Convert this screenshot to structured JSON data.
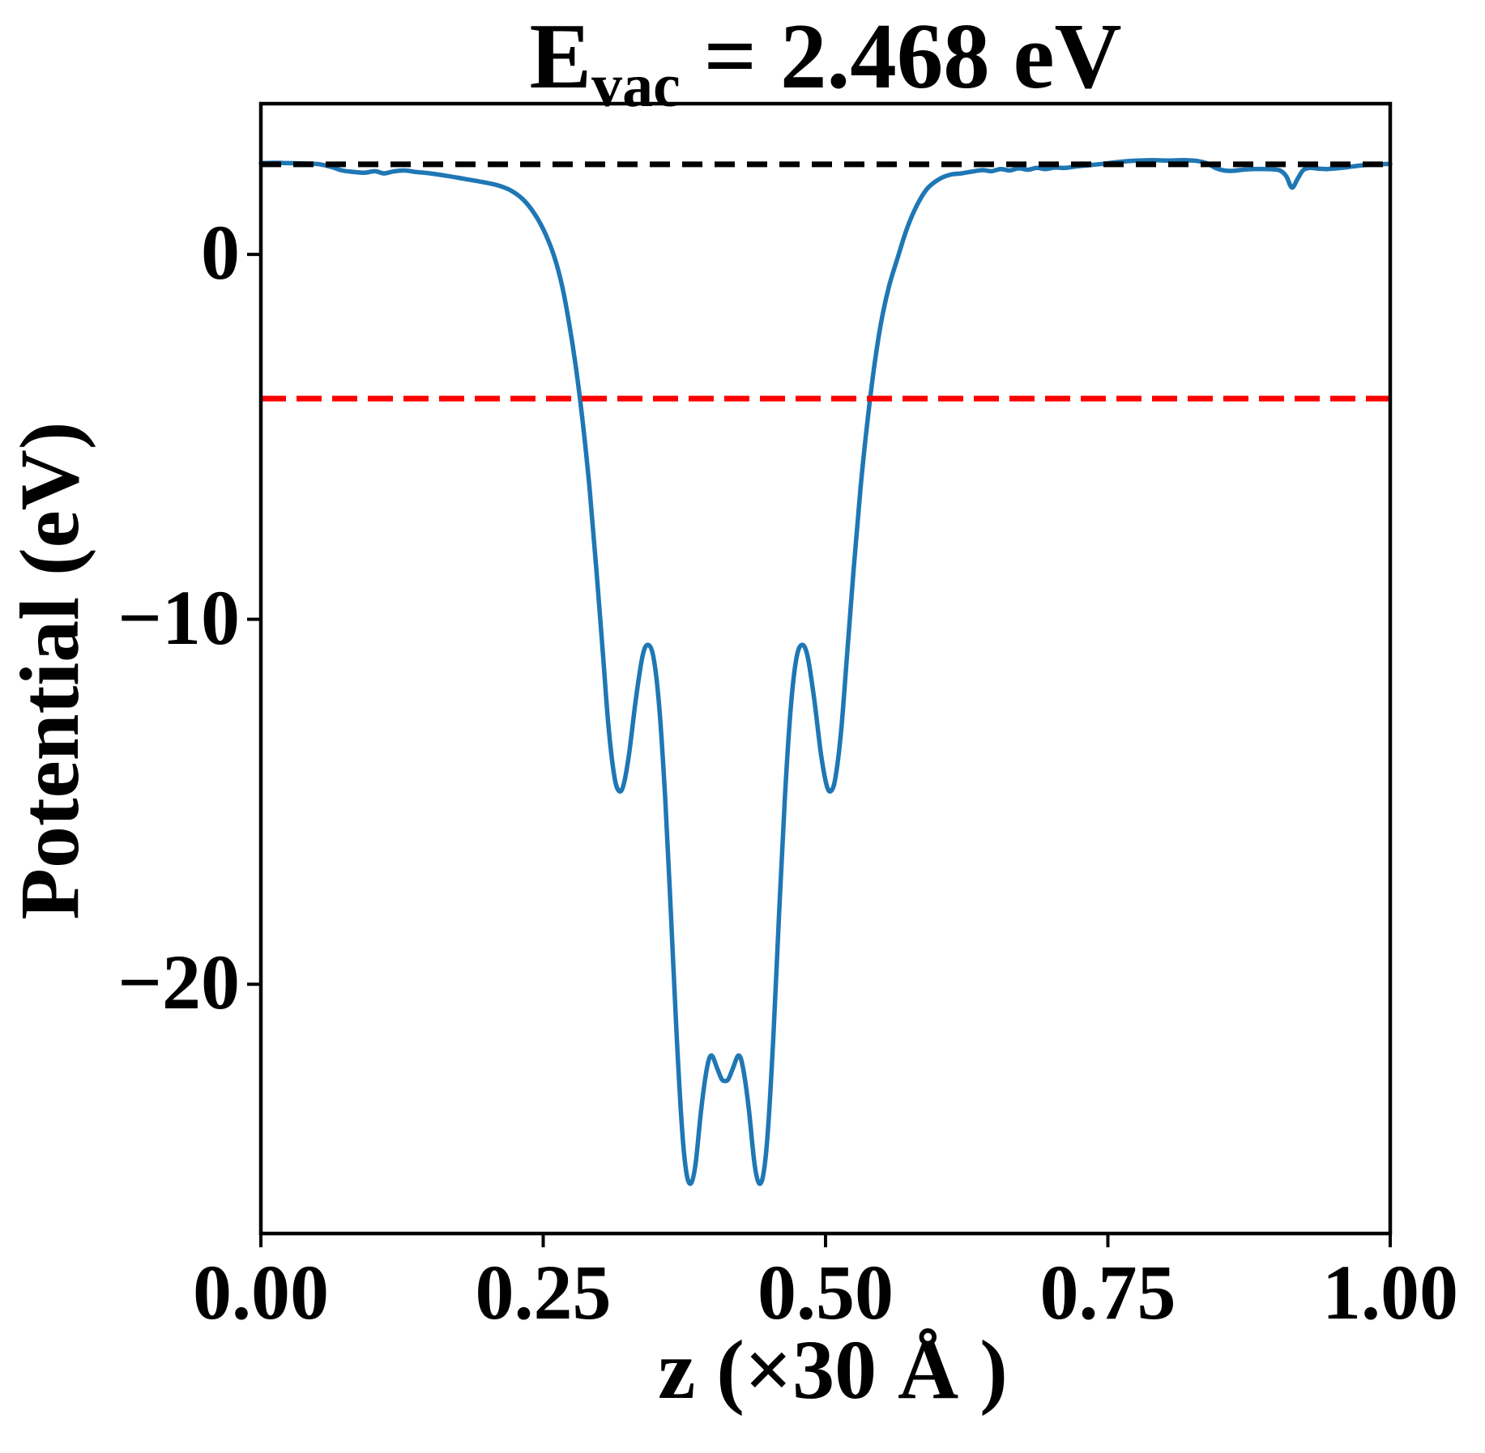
{
  "title": {
    "base": "E",
    "subscript": "vac",
    "rest": " = 2.468 eV",
    "full": "E_vac = 2.468 eV"
  },
  "colors": {
    "curve": "#1f77b4",
    "vacuum_line": "#000000",
    "fermi_line": "#ff0000",
    "axes": "#000000",
    "background": "#ffffff"
  },
  "chart_data": {
    "type": "line",
    "title": "E_vac = 2.468 eV",
    "xlabel": "z (×30 Å )",
    "ylabel": "Potential (eV)",
    "xlim": [
      0,
      1
    ],
    "ylim": [
      -26.83,
      4.13
    ],
    "grid": false,
    "legend": "none",
    "x_ticks": {
      "values": [
        0.0,
        0.25,
        0.5,
        0.75,
        1.0
      ],
      "labels": [
        "0.00",
        "0.25",
        "0.50",
        "0.75",
        "1.00"
      ]
    },
    "y_ticks": {
      "values": [
        0,
        -10,
        -20
      ],
      "labels": [
        "0",
        "−10",
        "−20"
      ]
    },
    "series": [
      {
        "name": "planar-averaged-potential",
        "kind": "line",
        "color": "#1f77b4",
        "style": "solid",
        "linewidth": 5.5,
        "points": [
          [
            0.0,
            2.5
          ],
          [
            0.012,
            2.51
          ],
          [
            0.025,
            2.5
          ],
          [
            0.04,
            2.49
          ],
          [
            0.052,
            2.47
          ],
          [
            0.062,
            2.4
          ],
          [
            0.072,
            2.3
          ],
          [
            0.082,
            2.26
          ],
          [
            0.092,
            2.24
          ],
          [
            0.101,
            2.28
          ],
          [
            0.109,
            2.22
          ],
          [
            0.117,
            2.27
          ],
          [
            0.127,
            2.3
          ],
          [
            0.137,
            2.26
          ],
          [
            0.15,
            2.22
          ],
          [
            0.165,
            2.15
          ],
          [
            0.18,
            2.07
          ],
          [
            0.195,
            1.99
          ],
          [
            0.21,
            1.89
          ],
          [
            0.222,
            1.74
          ],
          [
            0.233,
            1.48
          ],
          [
            0.243,
            1.08
          ],
          [
            0.252,
            0.56
          ],
          [
            0.26,
            -0.08
          ],
          [
            0.267,
            -0.9
          ],
          [
            0.273,
            -1.9
          ],
          [
            0.279,
            -3.1
          ],
          [
            0.285,
            -4.6
          ],
          [
            0.291,
            -6.4
          ],
          [
            0.297,
            -8.6
          ],
          [
            0.303,
            -11.0
          ],
          [
            0.308,
            -13.0
          ],
          [
            0.313,
            -14.3
          ],
          [
            0.317,
            -14.7
          ],
          [
            0.321,
            -14.55
          ],
          [
            0.326,
            -13.7
          ],
          [
            0.332,
            -12.2
          ],
          [
            0.338,
            -11.0
          ],
          [
            0.343,
            -10.7
          ],
          [
            0.348,
            -11.1
          ],
          [
            0.353,
            -12.5
          ],
          [
            0.358,
            -14.9
          ],
          [
            0.363,
            -18.0
          ],
          [
            0.368,
            -21.3
          ],
          [
            0.373,
            -24.0
          ],
          [
            0.377,
            -25.2
          ],
          [
            0.381,
            -25.45
          ],
          [
            0.385,
            -24.9
          ],
          [
            0.39,
            -23.4
          ],
          [
            0.395,
            -22.3
          ],
          [
            0.399,
            -21.95
          ],
          [
            0.404,
            -22.3
          ],
          [
            0.408,
            -22.6
          ],
          [
            0.411,
            -22.65
          ],
          [
            0.414,
            -22.6
          ],
          [
            0.418,
            -22.3
          ],
          [
            0.423,
            -21.95
          ],
          [
            0.427,
            -22.3
          ],
          [
            0.432,
            -23.4
          ],
          [
            0.437,
            -24.9
          ],
          [
            0.441,
            -25.45
          ],
          [
            0.445,
            -25.2
          ],
          [
            0.449,
            -24.0
          ],
          [
            0.454,
            -21.3
          ],
          [
            0.459,
            -18.0
          ],
          [
            0.464,
            -14.9
          ],
          [
            0.469,
            -12.5
          ],
          [
            0.474,
            -11.1
          ],
          [
            0.479,
            -10.7
          ],
          [
            0.484,
            -11.0
          ],
          [
            0.49,
            -12.2
          ],
          [
            0.496,
            -13.7
          ],
          [
            0.501,
            -14.55
          ],
          [
            0.505,
            -14.7
          ],
          [
            0.509,
            -14.3
          ],
          [
            0.514,
            -13.0
          ],
          [
            0.519,
            -11.0
          ],
          [
            0.525,
            -8.6
          ],
          [
            0.531,
            -6.4
          ],
          [
            0.537,
            -4.6
          ],
          [
            0.543,
            -3.1
          ],
          [
            0.549,
            -1.9
          ],
          [
            0.556,
            -0.9
          ],
          [
            0.564,
            -0.08
          ],
          [
            0.572,
            0.7
          ],
          [
            0.581,
            1.35
          ],
          [
            0.59,
            1.8
          ],
          [
            0.6,
            2.05
          ],
          [
            0.61,
            2.18
          ],
          [
            0.62,
            2.22
          ],
          [
            0.63,
            2.27
          ],
          [
            0.639,
            2.31
          ],
          [
            0.647,
            2.28
          ],
          [
            0.655,
            2.34
          ],
          [
            0.663,
            2.3
          ],
          [
            0.671,
            2.36
          ],
          [
            0.679,
            2.32
          ],
          [
            0.687,
            2.37
          ],
          [
            0.695,
            2.34
          ],
          [
            0.703,
            2.38
          ],
          [
            0.712,
            2.37
          ],
          [
            0.722,
            2.41
          ],
          [
            0.732,
            2.44
          ],
          [
            0.742,
            2.47
          ],
          [
            0.753,
            2.51
          ],
          [
            0.765,
            2.55
          ],
          [
            0.777,
            2.57
          ],
          [
            0.79,
            2.58
          ],
          [
            0.803,
            2.57
          ],
          [
            0.816,
            2.58
          ],
          [
            0.829,
            2.56
          ],
          [
            0.838,
            2.49
          ],
          [
            0.846,
            2.36
          ],
          [
            0.853,
            2.3
          ],
          [
            0.861,
            2.29
          ],
          [
            0.869,
            2.32
          ],
          [
            0.879,
            2.34
          ],
          [
            0.889,
            2.34
          ],
          [
            0.897,
            2.33
          ],
          [
            0.903,
            2.29
          ],
          [
            0.908,
            2.14
          ],
          [
            0.913,
            1.83
          ],
          [
            0.918,
            2.07
          ],
          [
            0.923,
            2.31
          ],
          [
            0.929,
            2.37
          ],
          [
            0.936,
            2.35
          ],
          [
            0.944,
            2.34
          ],
          [
            0.953,
            2.36
          ],
          [
            0.962,
            2.39
          ],
          [
            0.972,
            2.43
          ],
          [
            0.982,
            2.46
          ],
          [
            0.992,
            2.47
          ],
          [
            1.0,
            2.48
          ]
        ]
      },
      {
        "name": "vacuum-level-line",
        "kind": "hline",
        "color": "#000000",
        "style": "dashed",
        "value": 2.468
      },
      {
        "name": "fermi-level-line",
        "kind": "hline",
        "color": "#ff0000",
        "style": "dashed",
        "value": -3.95
      }
    ]
  }
}
